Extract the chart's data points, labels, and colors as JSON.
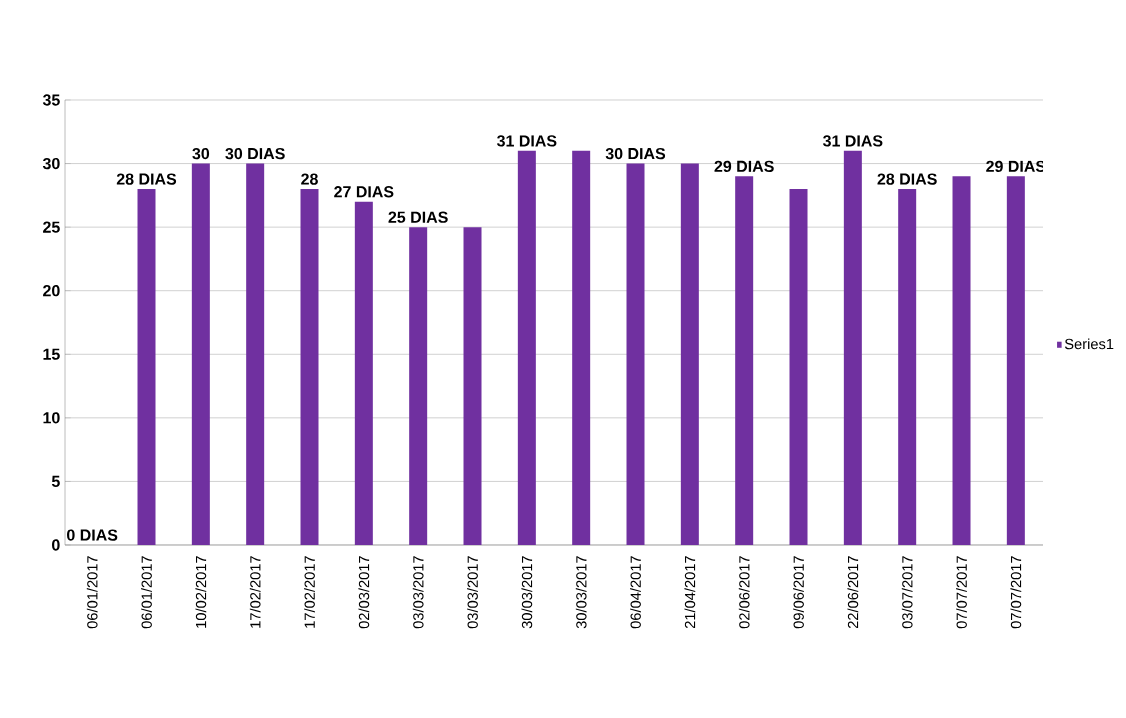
{
  "chart_data": {
    "type": "bar",
    "categories": [
      "06/01/2017",
      "06/01/2017",
      "10/02/2017",
      "17/02/2017",
      "17/02/2017",
      "02/03/2017",
      "03/03/2017",
      "03/03/2017",
      "30/03/2017",
      "30/03/2017",
      "06/04/2017",
      "21/04/2017",
      "02/06/2017",
      "09/06/2017",
      "22/06/2017",
      "03/07/2017",
      "07/07/2017",
      "07/07/2017"
    ],
    "series": [
      {
        "name": "Series1",
        "color": "#7030a0",
        "values": [
          0,
          28,
          30,
          30,
          28,
          27,
          25,
          25,
          31,
          31,
          30,
          30,
          29,
          28,
          31,
          28,
          29,
          29
        ],
        "value_labels": [
          "0 DIAS",
          "28 DIAS",
          "30",
          "30 DIAS",
          "28",
          "27 DIAS",
          "25 DIAS",
          null,
          "31 DIAS",
          null,
          "30 DIAS",
          null,
          "29 DIAS",
          null,
          "31 DIAS",
          "28 DIAS",
          null,
          "29 DIAS"
        ]
      }
    ],
    "ylim": [
      0,
      35
    ],
    "yticks": [
      0,
      5,
      10,
      15,
      20,
      25,
      30,
      35
    ],
    "grid": "y",
    "legend": "right"
  }
}
